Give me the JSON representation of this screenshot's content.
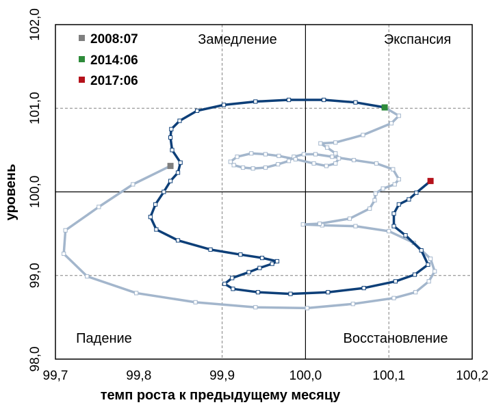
{
  "chart_data": {
    "type": "line",
    "title": "",
    "xlabel": "темп роста к предыдущему месяцу",
    "ylabel": "уровень",
    "xlim": [
      99.7,
      100.2
    ],
    "ylim": [
      98.0,
      102.0
    ],
    "x_ticks": [
      99.7,
      99.8,
      99.9,
      100.0,
      100.1,
      100.2
    ],
    "x_tick_labels": [
      "99,7",
      "99,8",
      "99,9",
      "100,0",
      "100,1",
      "100,2"
    ],
    "y_ticks": [
      98.0,
      99.0,
      100.0,
      101.0,
      102.0
    ],
    "y_tick_labels": [
      "98,0",
      "99,0",
      "100,0",
      "101,0",
      "102,0"
    ],
    "reference_lines": {
      "x": 100.0,
      "y": 100.0
    },
    "gridlines_dashed": {
      "x": [
        99.9,
        100.1
      ],
      "y": [
        99.0,
        101.0
      ]
    },
    "quadrant_labels": {
      "top_left": "Замедление",
      "top_right": "Экспансия",
      "bottom_left": "Падение",
      "bottom_right": "Восстановление"
    },
    "legend": {
      "placement": "top-left",
      "items": [
        {
          "label": "2008:07",
          "color": "#7f7f7f"
        },
        {
          "label": "2014:06",
          "color": "#2e8b3a"
        },
        {
          "label": "2017:06",
          "color": "#b5121b"
        }
      ]
    },
    "series": [
      {
        "color": "#a3b6cc",
        "points": [
          [
            99.838,
            100.31
          ],
          [
            99.793,
            100.09
          ],
          [
            99.752,
            99.82
          ],
          [
            99.712,
            99.54
          ],
          [
            99.71,
            99.26
          ],
          [
            99.738,
            98.99
          ],
          [
            99.797,
            98.79
          ],
          [
            99.868,
            98.68
          ],
          [
            99.94,
            98.62
          ],
          [
            100.002,
            98.61
          ],
          [
            100.057,
            98.66
          ],
          [
            100.106,
            98.73
          ],
          [
            100.132,
            98.8
          ],
          [
            100.148,
            98.93
          ],
          [
            100.155,
            99.05
          ],
          [
            100.15,
            99.2
          ],
          [
            100.13,
            99.39
          ],
          [
            100.1,
            99.53
          ],
          [
            100.06,
            99.59
          ],
          [
            100.02,
            99.6
          ],
          [
            99.997,
            99.61
          ],
          [
            100.017,
            99.62
          ],
          [
            100.053,
            99.68
          ],
          [
            100.077,
            99.8
          ],
          [
            100.083,
            99.9
          ],
          [
            100.084,
            99.98
          ],
          [
            100.093,
            100.04
          ],
          [
            100.107,
            100.09
          ],
          [
            100.112,
            100.15
          ],
          [
            100.105,
            100.27
          ],
          [
            100.085,
            100.34
          ],
          [
            100.058,
            100.38
          ],
          [
            100.032,
            100.42
          ],
          [
            100.012,
            100.45
          ],
          [
            99.998,
            100.45
          ],
          [
            99.986,
            100.42
          ],
          [
            99.98,
            100.37
          ],
          [
            99.967,
            100.33
          ],
          [
            99.952,
            100.29
          ],
          [
            99.937,
            100.28
          ],
          [
            99.925,
            100.29
          ],
          [
            99.914,
            100.32
          ],
          [
            99.91,
            100.36
          ],
          [
            99.918,
            100.42
          ],
          [
            99.935,
            100.46
          ],
          [
            99.952,
            100.45
          ],
          [
            99.968,
            100.43
          ],
          [
            99.988,
            100.39
          ],
          [
            100.01,
            100.34
          ],
          [
            100.025,
            100.31
          ],
          [
            100.036,
            100.34
          ],
          [
            100.04,
            100.4
          ],
          [
            100.036,
            100.46
          ],
          [
            100.026,
            100.53
          ],
          [
            100.018,
            100.58
          ],
          [
            100.036,
            100.59
          ],
          [
            100.069,
            100.68
          ],
          [
            100.103,
            100.82
          ],
          [
            100.112,
            100.91
          ],
          [
            100.095,
            101.01
          ]
        ],
        "start_marker": "2008:07"
      },
      {
        "color": "#0d3f78",
        "points": [
          [
            100.095,
            101.01
          ],
          [
            100.06,
            101.07
          ],
          [
            100.022,
            101.1
          ],
          [
            99.98,
            101.1
          ],
          [
            99.94,
            101.08
          ],
          [
            99.902,
            101.04
          ],
          [
            99.87,
            100.97
          ],
          [
            99.849,
            100.85
          ],
          [
            99.839,
            100.75
          ],
          [
            99.838,
            100.65
          ],
          [
            99.84,
            100.5
          ],
          [
            99.85,
            100.35
          ],
          [
            99.847,
            100.23
          ],
          [
            99.838,
            100.13
          ],
          [
            99.83,
            100.0
          ],
          [
            99.82,
            99.85
          ],
          [
            99.814,
            99.7
          ],
          [
            99.821,
            99.55
          ],
          [
            99.847,
            99.42
          ],
          [
            99.886,
            99.31
          ],
          [
            99.922,
            99.25
          ],
          [
            99.948,
            99.21
          ],
          [
            99.966,
            99.17
          ],
          [
            99.96,
            99.14
          ],
          [
            99.945,
            99.09
          ],
          [
            99.932,
            99.04
          ],
          [
            99.912,
            98.97
          ],
          [
            99.903,
            98.9
          ],
          [
            99.913,
            98.84
          ],
          [
            99.943,
            98.8
          ],
          [
            99.982,
            98.78
          ],
          [
            100.027,
            98.8
          ],
          [
            100.07,
            98.85
          ],
          [
            100.108,
            98.93
          ],
          [
            100.131,
            99.01
          ],
          [
            100.147,
            99.13
          ],
          [
            100.139,
            99.3
          ],
          [
            100.12,
            99.48
          ],
          [
            100.106,
            99.59
          ],
          [
            100.106,
            99.74
          ],
          [
            100.112,
            99.85
          ],
          [
            100.124,
            99.91
          ],
          [
            100.133,
            99.99
          ],
          [
            100.15,
            100.13
          ]
        ],
        "end_marker": "2017:06"
      }
    ]
  }
}
